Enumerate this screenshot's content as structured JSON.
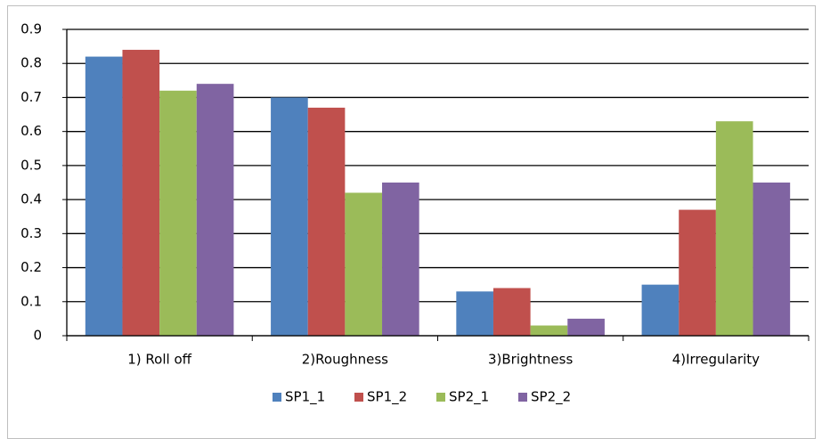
{
  "chart_data": {
    "type": "bar",
    "categories": [
      "1) Roll off",
      "2)Roughness",
      "3)Brightness",
      "4)Irregularity"
    ],
    "series": [
      {
        "name": "SP1_1",
        "color": "#4f81bd",
        "values": [
          0.82,
          0.7,
          0.13,
          0.15
        ]
      },
      {
        "name": "SP1_2",
        "color": "#c0504d",
        "values": [
          0.84,
          0.67,
          0.14,
          0.37
        ]
      },
      {
        "name": "SP2_1",
        "color": "#9bbb59",
        "values": [
          0.72,
          0.42,
          0.03,
          0.63
        ]
      },
      {
        "name": "SP2_2",
        "color": "#8064a2",
        "values": [
          0.74,
          0.45,
          0.05,
          0.45
        ]
      }
    ],
    "ylim": [
      0,
      0.9
    ],
    "yticks": [
      0,
      0.1,
      0.2,
      0.3,
      0.4,
      0.5,
      0.6,
      0.7,
      0.8,
      0.9
    ],
    "grid": true,
    "legend": "bottom"
  }
}
